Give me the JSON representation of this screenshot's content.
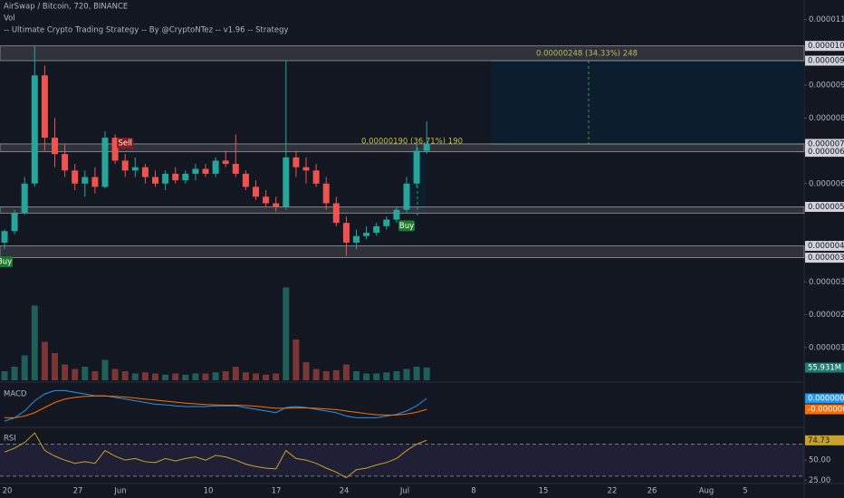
{
  "chart_data": [
    {
      "type": "candlestick",
      "title": "AirSwap / Bitcoin, 720, BINANCE",
      "indicator": "-- Ultimate Crypto Trading Strategy -- By @CryptoNTez -- v1.96 -- Strategy",
      "xtick_labels": [
        "20",
        "27",
        "Jun",
        "10",
        "17",
        "24",
        "Jul",
        "8",
        "15",
        "22",
        "26",
        "Aug",
        "5"
      ],
      "open": [
        4.2e-06,
        4.55e-06,
        5.1e-06,
        6e-06,
        9.3e-06,
        7.4e-06,
        6.9e-06,
        6.4e-06,
        6e-06,
        6.2e-06,
        5.9e-06,
        7.4e-06,
        6.7e-06,
        6.4e-06,
        6.5e-06,
        6.2e-06,
        6e-06,
        6.3e-06,
        6.1e-06,
        6.3e-06,
        6.45e-06,
        6.3e-06,
        6.7e-06,
        6.6e-06,
        6.3e-06,
        5.9e-06,
        5.6e-06,
        5.4e-06,
        5.3e-06,
        6.8e-06,
        6.5e-06,
        6.4e-06,
        6e-06,
        5.4e-06,
        4.8e-06,
        4.2e-06,
        4.4e-06,
        4.5e-06,
        4.7e-06,
        4.9e-06,
        5.2e-06,
        6e-06,
        7e-06
      ],
      "high": [
        4.6e-06,
        5.2e-06,
        6.2e-06,
        1.02e-05,
        9.6e-06,
        8e-06,
        7.2e-06,
        6.6e-06,
        6.4e-06,
        6.5e-06,
        7.6e-06,
        7.5e-06,
        6.9e-06,
        6.8e-06,
        6.6e-06,
        6.4e-06,
        6.4e-06,
        6.5e-06,
        6.4e-06,
        6.6e-06,
        6.6e-06,
        6.8e-06,
        7e-06,
        7.5e-06,
        6.4e-06,
        6.1e-06,
        5.8e-06,
        5.6e-06,
        9.75e-06,
        7e-06,
        6.8e-06,
        6.6e-06,
        6.2e-06,
        5.6e-06,
        5e-06,
        4.6e-06,
        4.7e-06,
        4.8e-06,
        5e-06,
        5.3e-06,
        6.2e-06,
        7.2e-06,
        7.9e-06
      ],
      "low": [
        4e-06,
        4.45e-06,
        5.05e-06,
        5.9e-06,
        7e-06,
        6.5e-06,
        6.2e-06,
        5.8e-06,
        5.6e-06,
        5.7e-06,
        5.85e-06,
        6.6e-06,
        6.2e-06,
        6.2e-06,
        6e-06,
        5.9e-06,
        5.8e-06,
        6e-06,
        6e-06,
        6.1e-06,
        6.2e-06,
        6.2e-06,
        6.5e-06,
        6.2e-06,
        5.8e-06,
        5.5e-06,
        5.3e-06,
        5.15e-06,
        5.2e-06,
        6.2e-06,
        6e-06,
        5.9e-06,
        5.2e-06,
        4.7e-06,
        3.8e-06,
        4e-06,
        4.3e-06,
        4.4e-06,
        4.6e-06,
        4.8e-06,
        5.1e-06,
        5.9e-06,
        6.9e-06
      ],
      "close": [
        4.55e-06,
        5.1e-06,
        6e-06,
        9.3e-06,
        7.4e-06,
        6.9e-06,
        6.4e-06,
        6e-06,
        6.2e-06,
        5.9e-06,
        7.4e-06,
        6.7e-06,
        6.4e-06,
        6.5e-06,
        6.2e-06,
        6e-06,
        6.3e-06,
        6.1e-06,
        6.3e-06,
        6.45e-06,
        6.3e-06,
        6.7e-06,
        6.6e-06,
        6.3e-06,
        5.9e-06,
        5.6e-06,
        5.4e-06,
        5.3e-06,
        6.8e-06,
        6.5e-06,
        6.4e-06,
        6e-06,
        5.4e-06,
        4.8e-06,
        4.2e-06,
        4.4e-06,
        4.5e-06,
        4.7e-06,
        4.9e-06,
        5.2e-06,
        6e-06,
        7e-06,
        7.21e-06
      ],
      "up_color": "#26a69a",
      "down_color": "#ef5350",
      "ylim": [
        0,
        1.16e-05
      ],
      "yticks": [
        {
          "value": 1.1e-05,
          "label": "0.00001100"
        },
        {
          "value": 9e-06,
          "label": "0.00000900"
        },
        {
          "value": 8e-06,
          "label": "0.00000800"
        },
        {
          "value": 6e-06,
          "label": "0.00000600"
        },
        {
          "value": 3e-06,
          "label": "0.00000300"
        },
        {
          "value": 2e-06,
          "label": "0.00000200"
        },
        {
          "value": 1e-06,
          "label": "0.00000100"
        }
      ],
      "zones": [
        {
          "low": 9.75e-06,
          "high": 1.02e-05,
          "low_label": "0.00000975",
          "high_label": "0.00001020"
        },
        {
          "low": 6.97e-06,
          "high": 7.21e-06,
          "low_label": "0.00000697",
          "high_label": "0.00000721"
        },
        {
          "low": 5.1e-06,
          "high": 5.29e-06,
          "high_label": "0.00000529"
        },
        {
          "low": 3.74e-06,
          "high": 4.1e-06,
          "low_label": "0.00000374",
          "high_label": "0.00000410"
        }
      ],
      "signals": [
        "Buy",
        "Sell",
        "Buy"
      ],
      "annotations": [
        "0.00000248 (34.33%) 248",
        "0.00000190 (36.71%) 190"
      ]
    },
    {
      "type": "bar",
      "title": "Vol",
      "ylim": [
        0,
        1680
      ],
      "up_color": "#1f5f59",
      "down_color": "#7a3634",
      "values": [
        40,
        60,
        110,
        330,
        170,
        120,
        70,
        50,
        60,
        40,
        90,
        50,
        40,
        30,
        35,
        30,
        25,
        30,
        25,
        30,
        30,
        35,
        40,
        60,
        35,
        30,
        25,
        30,
        410,
        180,
        80,
        50,
        40,
        45,
        70,
        40,
        30,
        30,
        35,
        40,
        50,
        60,
        55.931
      ],
      "last_label": "55.931M"
    },
    {
      "type": "line",
      "title": "MACD",
      "ylim": [
        -5.3e-07,
        6.7e-07
      ],
      "series": [
        {
          "color": "#2196f3",
          "last_label": "0.00000027",
          "values": [
            -4e-07,
            -3e-07,
            -1e-07,
            2e-07,
            4e-07,
            5e-07,
            5e-07,
            4.5e-07,
            4e-07,
            3.5e-07,
            3.5e-07,
            3e-07,
            2.5e-07,
            2e-07,
            1.5e-07,
            1e-07,
            8e-08,
            5e-08,
            3e-08,
            3e-08,
            3e-08,
            5e-08,
            5e-08,
            5e-08,
            0,
            -5e-08,
            -1e-07,
            -1.5e-07,
            0,
            3e-08,
            0,
            -5e-08,
            -1e-07,
            -1.5e-07,
            -2.5e-07,
            -3e-07,
            -3e-07,
            -3e-07,
            -2.5e-07,
            -2e-07,
            -1e-07,
            5e-08,
            2.7e-07
          ]
        },
        {
          "color": "#ff6d00",
          "last_label": "-0.00000005",
          "values": [
            -3e-07,
            -3e-07,
            -2.5e-07,
            -1.5e-07,
            0,
            1.5e-07,
            2.5e-07,
            3e-07,
            3.3e-07,
            3.4e-07,
            3.4e-07,
            3.3e-07,
            3.1e-07,
            2.8e-07,
            2.5e-07,
            2.2e-07,
            1.9e-07,
            1.6e-07,
            1.3e-07,
            1.1e-07,
            9e-08,
            8e-08,
            7e-08,
            7e-08,
            6e-08,
            4e-08,
            1e-08,
            -2e-08,
            -2e-08,
            -1e-08,
            -1e-08,
            -2e-08,
            -4e-08,
            -6e-08,
            -1e-07,
            -1.4e-07,
            -1.8e-07,
            -2.1e-07,
            -2.2e-07,
            -2.2e-07,
            -1.9e-07,
            -1.4e-07,
            -5e-08
          ]
        }
      ]
    },
    {
      "type": "line",
      "title": "RSI",
      "ylim": [
        21.9,
        89.8
      ],
      "yticks": [
        {
          "value": 50,
          "label": "50.00"
        },
        {
          "value": 25,
          "label": "25.00"
        }
      ],
      "levels": [
        70,
        30
      ],
      "series": [
        {
          "color": "#c9a227",
          "last_label": "74.73",
          "values": [
            60,
            65,
            72,
            84,
            62,
            55,
            50,
            46,
            48,
            46,
            62,
            55,
            50,
            52,
            48,
            47,
            52,
            49,
            52,
            54,
            50,
            56,
            54,
            50,
            45,
            42,
            40,
            39,
            62,
            52,
            50,
            46,
            40,
            35,
            28,
            38,
            40,
            44,
            47,
            52,
            62,
            70,
            74.73
          ]
        }
      ]
    }
  ]
}
